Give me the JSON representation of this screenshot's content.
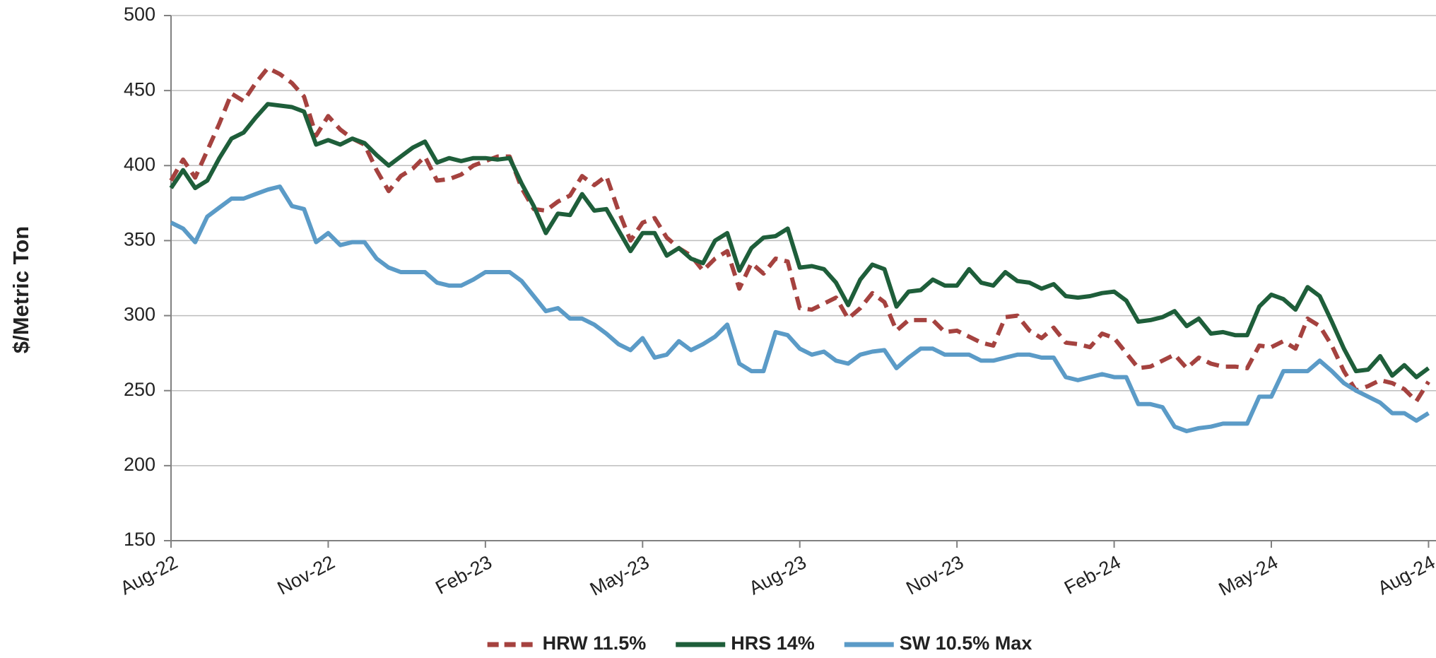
{
  "chart_data": {
    "type": "line",
    "y_label": "$/Metric Ton",
    "categories": [
      "Aug-22",
      null,
      null,
      null,
      null,
      null,
      null,
      null,
      null,
      null,
      null,
      null,
      null,
      "Nov-22",
      null,
      null,
      null,
      null,
      null,
      null,
      null,
      null,
      null,
      null,
      null,
      null,
      "Feb-23",
      null,
      null,
      null,
      null,
      null,
      null,
      null,
      null,
      null,
      null,
      null,
      null,
      "May-23",
      null,
      null,
      null,
      null,
      null,
      null,
      null,
      null,
      null,
      null,
      null,
      null,
      "Aug-23",
      null,
      null,
      null,
      null,
      null,
      null,
      null,
      null,
      null,
      null,
      null,
      null,
      "Nov-23",
      null,
      null,
      null,
      null,
      null,
      null,
      null,
      null,
      null,
      null,
      null,
      null,
      "Feb-24",
      null,
      null,
      null,
      null,
      null,
      null,
      null,
      null,
      null,
      null,
      null,
      null,
      "May-24",
      null,
      null,
      null,
      null,
      null,
      null,
      null,
      null,
      null,
      null,
      null,
      null,
      "Aug-24"
    ],
    "series": [
      {
        "name": "HRW 11.5%",
        "color": "#a5423f",
        "style": "dashed",
        "values": [
          390,
          404,
          392,
          410,
          428,
          448,
          443,
          455,
          465,
          461,
          455,
          446,
          420,
          433,
          424,
          418,
          414,
          397,
          383,
          393,
          398,
          406,
          390,
          391,
          394,
          400,
          403,
          406,
          406,
          385,
          371,
          370,
          376,
          380,
          393,
          387,
          393,
          370,
          350,
          362,
          365,
          352,
          345,
          340,
          330,
          338,
          343,
          318,
          335,
          328,
          338,
          336,
          305,
          304,
          308,
          312,
          298,
          305,
          315,
          309,
          290,
          297,
          297,
          297,
          289,
          290,
          286,
          282,
          280,
          299,
          300,
          290,
          285,
          292,
          282,
          281,
          279,
          288,
          285,
          275,
          265,
          266,
          270,
          274,
          265,
          272,
          268,
          266,
          266,
          265,
          280,
          279,
          283,
          278,
          298,
          293,
          280,
          263,
          250,
          253,
          257,
          255,
          251,
          243,
          256
        ]
      },
      {
        "name": "HRS 14%",
        "color": "#1e5e3a",
        "style": "solid",
        "values": [
          385,
          397,
          385,
          390,
          405,
          418,
          422,
          432,
          441,
          440,
          439,
          436,
          414,
          417,
          414,
          418,
          415,
          407,
          400,
          406,
          412,
          416,
          402,
          405,
          403,
          405,
          405,
          404,
          405,
          388,
          373,
          355,
          368,
          367,
          381,
          370,
          371,
          357,
          343,
          355,
          355,
          340,
          345,
          338,
          335,
          350,
          355,
          330,
          345,
          352,
          353,
          358,
          332,
          333,
          331,
          322,
          307,
          324,
          334,
          331,
          306,
          316,
          317,
          324,
          320,
          320,
          331,
          322,
          320,
          329,
          323,
          322,
          318,
          321,
          313,
          312,
          313,
          315,
          316,
          310,
          296,
          297,
          299,
          303,
          293,
          298,
          288,
          289,
          287,
          287,
          306,
          314,
          311,
          304,
          319,
          313,
          296,
          278,
          263,
          264,
          273,
          260,
          267,
          259,
          265
        ]
      },
      {
        "name": "SW 10.5% Max",
        "color": "#5b9bc7",
        "style": "solid",
        "values": [
          362,
          358,
          349,
          366,
          372,
          378,
          378,
          381,
          384,
          386,
          373,
          371,
          349,
          355,
          347,
          349,
          349,
          338,
          332,
          329,
          329,
          329,
          322,
          320,
          320,
          324,
          329,
          329,
          329,
          323,
          313,
          303,
          305,
          298,
          298,
          294,
          288,
          281,
          277,
          285,
          272,
          274,
          283,
          277,
          281,
          286,
          294,
          268,
          263,
          263,
          289,
          287,
          278,
          274,
          276,
          270,
          268,
          274,
          276,
          277,
          265,
          272,
          278,
          278,
          274,
          274,
          274,
          270,
          270,
          272,
          274,
          274,
          272,
          272,
          259,
          257,
          259,
          261,
          259,
          259,
          241,
          241,
          239,
          226,
          223,
          225,
          226,
          228,
          228,
          228,
          246,
          246,
          263,
          263,
          263,
          270,
          263,
          255,
          250,
          246,
          242,
          235,
          235,
          230,
          235
        ]
      }
    ],
    "ylim": [
      150,
      500
    ],
    "yticks": [
      150,
      200,
      250,
      300,
      350,
      400,
      450,
      500
    ],
    "grid": true,
    "legend": "bottom"
  }
}
